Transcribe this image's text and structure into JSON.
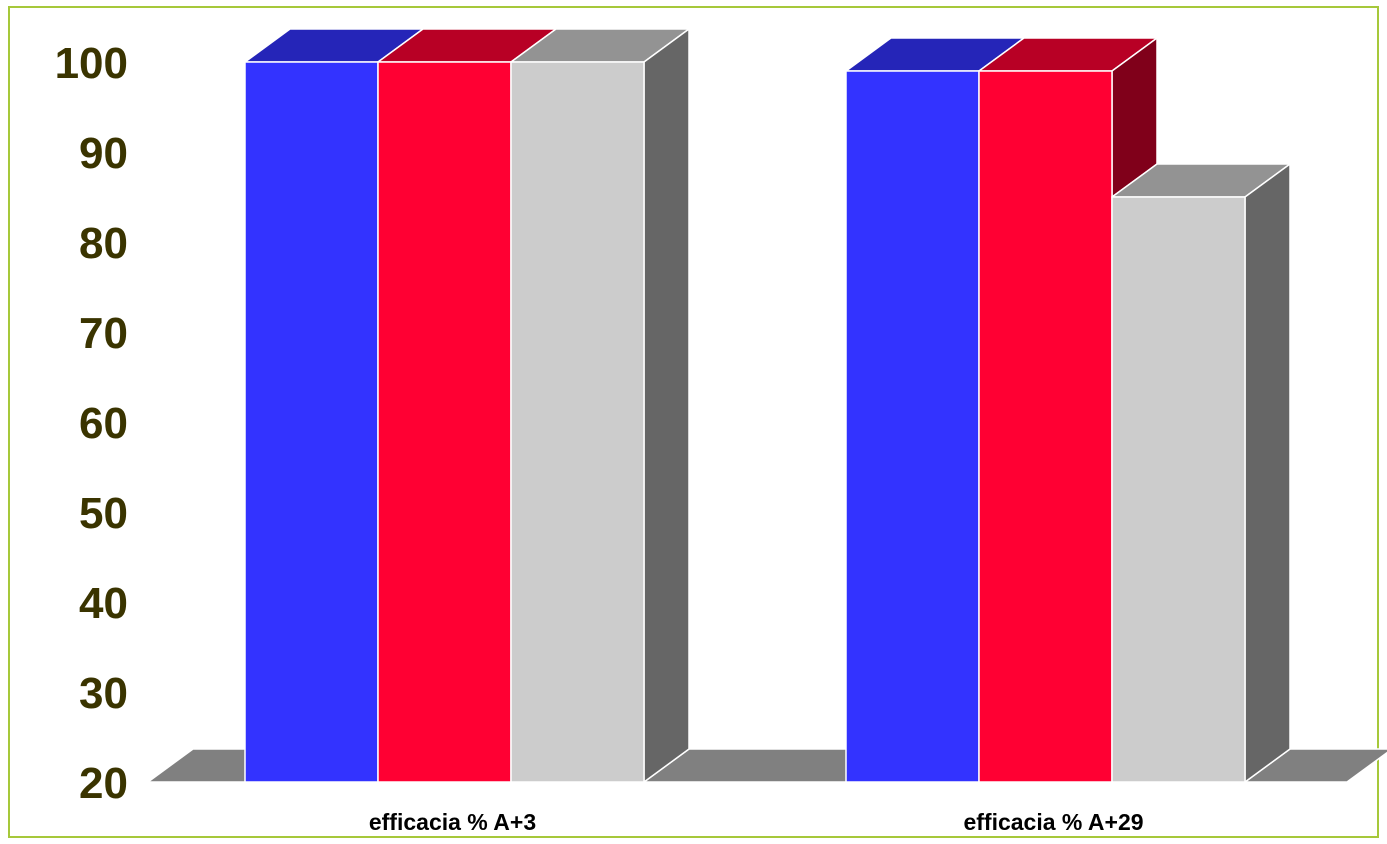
{
  "chart_data": {
    "type": "bar",
    "categories": [
      "efficacia % A+3",
      "efficacia % A+29"
    ],
    "series": [
      {
        "values": [
          100,
          99
        ],
        "color": "#3333ff"
      },
      {
        "values": [
          100,
          99
        ],
        "color": "#ff0033"
      },
      {
        "values": [
          100,
          85
        ],
        "color": "#cccccc"
      }
    ],
    "ylim": [
      20,
      100
    ],
    "yticks": [
      "20",
      "30",
      "40",
      "50",
      "60",
      "70",
      "80",
      "90",
      "100"
    ],
    "grid": false,
    "style": "3d-bar",
    "frame_color": "#a6c83a",
    "floor_color": "#808080",
    "tick_label_color": "#3a3400"
  }
}
